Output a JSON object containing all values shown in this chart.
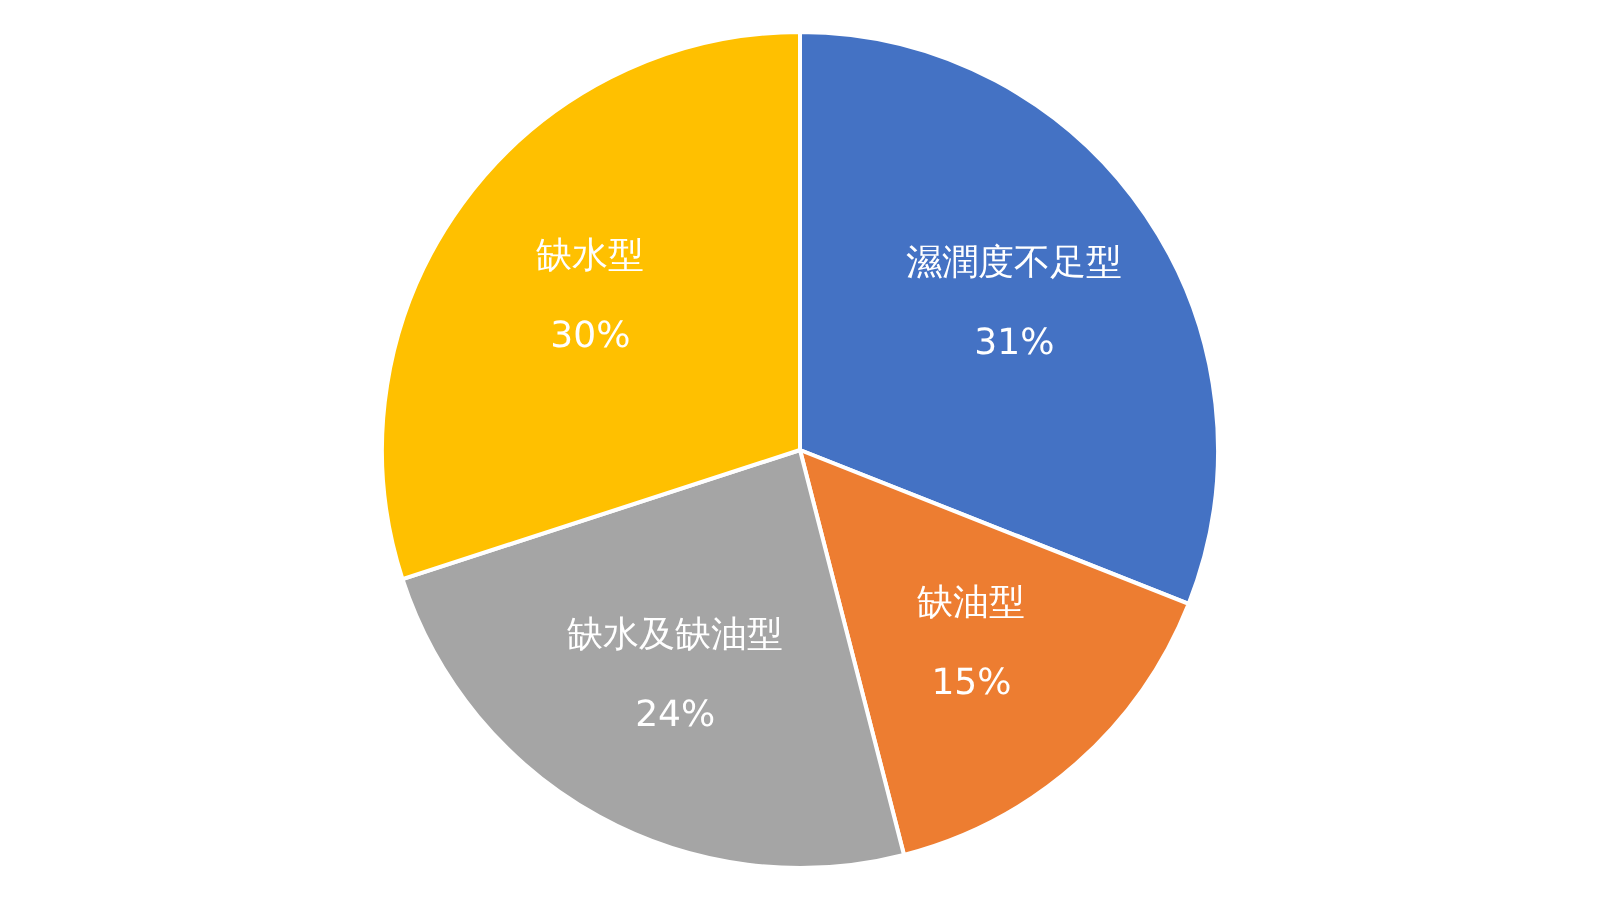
{
  "chart_data": {
    "type": "pie",
    "categories": [
      "濕潤度不足型",
      "缺油型",
      "缺水及缺油型",
      "缺水型"
    ],
    "values": [
      31,
      15,
      24,
      30
    ],
    "colors": [
      "#4472c4",
      "#ed7d31",
      "#a5a5a5",
      "#ffc000"
    ],
    "value_labels": [
      "31%",
      "15%",
      "24%",
      "30%"
    ],
    "legend": false
  }
}
